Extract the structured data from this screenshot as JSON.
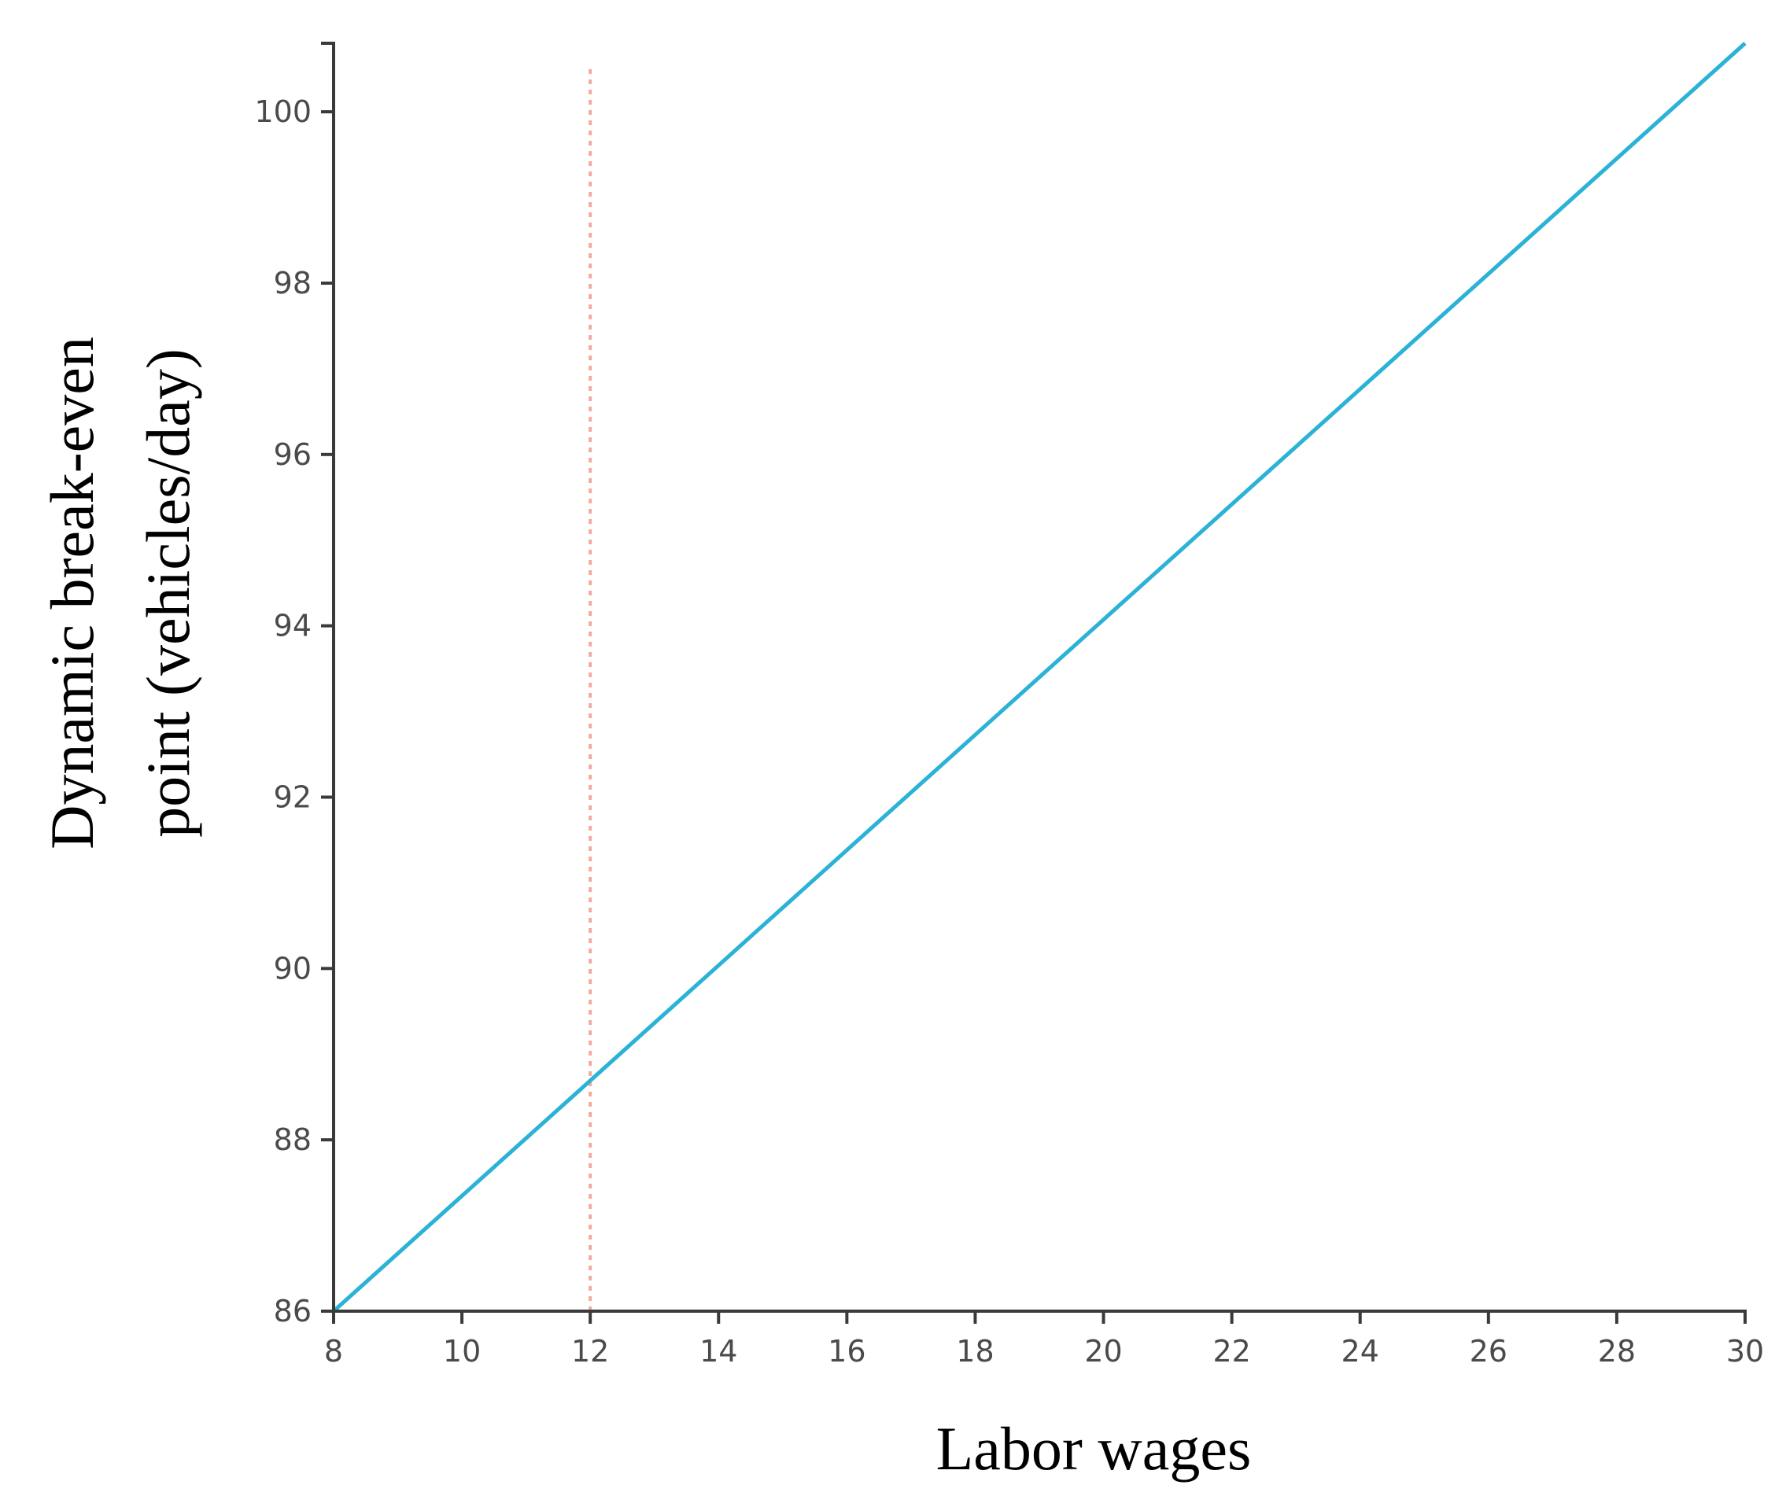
{
  "chart_data": {
    "type": "line",
    "title": "",
    "xlabel": "Labor wages",
    "ylabel_lines": [
      "Dynamic break-even",
      "point (vehicles/day)"
    ],
    "xlim": [
      8,
      30
    ],
    "ylim": [
      86,
      100.8
    ],
    "x_ticks": [
      8,
      10,
      12,
      14,
      16,
      18,
      20,
      22,
      24,
      26,
      28,
      30
    ],
    "y_ticks": [
      86,
      88,
      90,
      92,
      94,
      96,
      98,
      100
    ],
    "grid": false,
    "legend": "none",
    "series": [
      {
        "color": "#2bb2d6",
        "x": [
          8,
          30
        ],
        "y": [
          86,
          100.8
        ]
      }
    ],
    "reference_lines": [
      {
        "orientation": "vertical",
        "x": 12,
        "y_range": [
          86,
          100.5
        ],
        "style": "dotted",
        "color": "#f4a99a"
      }
    ]
  }
}
